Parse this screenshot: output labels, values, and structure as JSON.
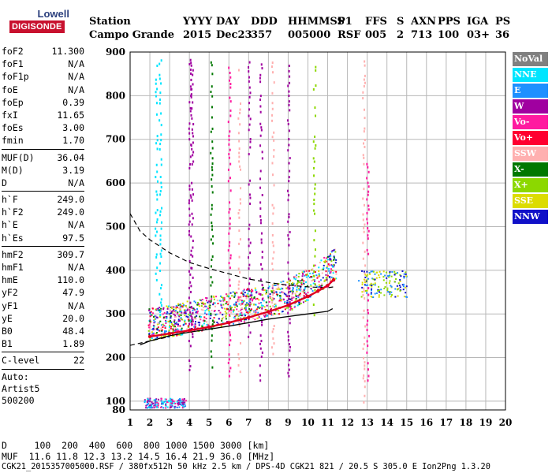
{
  "logo": {
    "line1": "Lowell",
    "line2": "DIGISONDE"
  },
  "header": {
    "row1": [
      "Station",
      "YYYY",
      "DAY",
      "DDD",
      "HHMMSS",
      "P1",
      "FFS",
      "S",
      "AXN",
      "PPS",
      "IGA",
      "PS"
    ],
    "row2": [
      "Campo Grande",
      "2015",
      "Dec23",
      "357",
      "005000",
      "RSF",
      "005",
      "2",
      "713",
      "100",
      "03+",
      "36"
    ]
  },
  "params": {
    "group1": [
      {
        "label": "foF2",
        "value": "11.300"
      },
      {
        "label": "foF1",
        "value": "N/A"
      },
      {
        "label": "foF1p",
        "value": "N/A"
      },
      {
        "label": "foE",
        "value": "N/A"
      },
      {
        "label": "foEp",
        "value": "0.39"
      },
      {
        "label": "fxI",
        "value": "11.65"
      },
      {
        "label": "foEs",
        "value": "3.00"
      },
      {
        "label": "fmin",
        "value": "1.70"
      }
    ],
    "group2": [
      {
        "label": "MUF(D)",
        "value": "36.04"
      },
      {
        "label": "M(D)",
        "value": "3.19"
      },
      {
        "label": "D",
        "value": "N/A"
      }
    ],
    "group3": [
      {
        "label": "h`F",
        "value": "249.0"
      },
      {
        "label": "h`F2",
        "value": "249.0"
      },
      {
        "label": "h`E",
        "value": "N/A"
      },
      {
        "label": "h`Es",
        "value": "97.5"
      }
    ],
    "group4": [
      {
        "label": "hmF2",
        "value": "309.7"
      },
      {
        "label": "hmF1",
        "value": "N/A"
      },
      {
        "label": "hmE",
        "value": "110.0"
      },
      {
        "label": "yF2",
        "value": "47.9"
      },
      {
        "label": "yF1",
        "value": "N/A"
      },
      {
        "label": "yE",
        "value": "20.0"
      },
      {
        "label": "B0",
        "value": "48.4"
      },
      {
        "label": "B1",
        "value": "1.89"
      }
    ],
    "clevel": {
      "label": "C-level",
      "value": "22"
    },
    "auto": [
      "Auto:",
      "Artist5",
      "500200"
    ]
  },
  "legend": [
    {
      "label": "NoVal",
      "color": "#808080"
    },
    {
      "label": "NNE",
      "color": "#00e5ff"
    },
    {
      "label": "E",
      "color": "#1e90ff"
    },
    {
      "label": "W",
      "color": "#a000a0"
    },
    {
      "label": "Vo-",
      "color": "#ff1aa0"
    },
    {
      "label": "Vo+",
      "color": "#ff0030"
    },
    {
      "label": "SSW",
      "color": "#ffb0b0"
    },
    {
      "label": "X-",
      "color": "#007800"
    },
    {
      "label": "X+",
      "color": "#8cd800"
    },
    {
      "label": "SSE",
      "color": "#dcdc00"
    },
    {
      "label": "NNW",
      "color": "#1010c8"
    }
  ],
  "footer": {
    "d_row": "D     100  200  400  600  800 1000 1500 3000 [km]",
    "muf_row": "MUF  11.6 11.8 12.3 13.2 14.5 16.4 21.9 36.0 [MHz]",
    "info_row": "CGK21_2015357005000.RSF / 380fx512h 50 kHz 2.5 km / DPS-4D CGK21 821 / 20.5 S 305.0 E Ion2Png 1.3.20"
  },
  "chart_data": {
    "type": "scatter",
    "xlabel": "",
    "ylabel": "",
    "xlim": [
      1,
      20
    ],
    "ylim": [
      80,
      900
    ],
    "x_ticks": [
      1,
      2,
      3,
      4,
      5,
      6,
      7,
      8,
      9,
      10,
      11,
      12,
      13,
      14,
      15,
      16,
      17,
      18,
      19,
      20
    ],
    "y_ticks": [
      100,
      200,
      300,
      400,
      500,
      600,
      700,
      800,
      900
    ],
    "grid": true,
    "o_trace": [
      [
        2.0,
        248
      ],
      [
        3,
        255
      ],
      [
        4,
        262
      ],
      [
        5,
        270
      ],
      [
        6,
        280
      ],
      [
        7,
        292
      ],
      [
        8,
        305
      ],
      [
        9,
        320
      ],
      [
        10,
        340
      ],
      [
        10.5,
        352
      ],
      [
        11,
        365
      ],
      [
        11.3,
        378
      ]
    ],
    "f2_lower_trace": [
      [
        1.5,
        229
      ],
      [
        2,
        238
      ],
      [
        3,
        250
      ],
      [
        4,
        258
      ],
      [
        5,
        265
      ],
      [
        6,
        272
      ],
      [
        7,
        280
      ],
      [
        8,
        288
      ],
      [
        9,
        294
      ],
      [
        10,
        300
      ],
      [
        11,
        306
      ],
      [
        11.25,
        312
      ]
    ],
    "profile_dashed": [
      [
        1.0,
        530
      ],
      [
        1.5,
        490
      ],
      [
        2,
        470
      ],
      [
        3,
        440
      ],
      [
        4,
        418
      ],
      [
        5,
        404
      ],
      [
        6,
        392
      ],
      [
        7,
        380
      ],
      [
        8,
        372
      ],
      [
        9,
        366
      ],
      [
        10,
        362
      ],
      [
        11,
        360
      ],
      [
        11.3,
        362
      ]
    ],
    "profile_dashed_low": [
      [
        1.0,
        228
      ],
      [
        2,
        238
      ],
      [
        3,
        248
      ]
    ],
    "es_band": {
      "x": [
        1.7,
        3.8
      ],
      "y": 97.5
    },
    "scatter_cluster": {
      "x": [
        12.5,
        15.0
      ],
      "y": [
        340,
        400
      ]
    }
  }
}
